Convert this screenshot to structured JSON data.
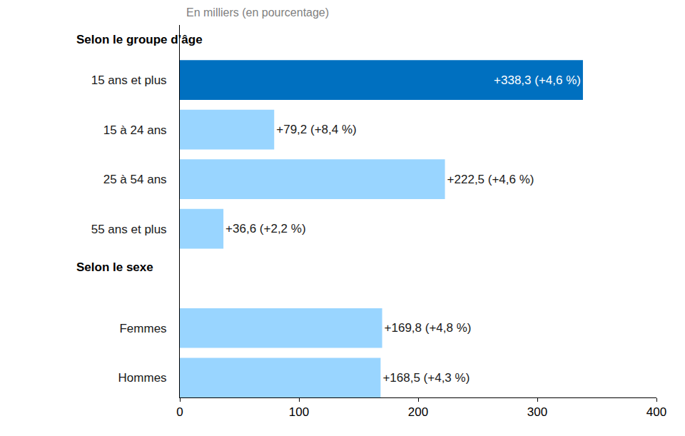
{
  "chart_data": {
    "type": "bar",
    "orientation": "horizontal",
    "subtitle": "En milliers (en pourcentage)",
    "categories": [
      "15 ans et plus",
      "15 à 24 ans",
      "25 à 54 ans",
      "55 ans et plus",
      "Femmes",
      "Hommes"
    ],
    "values": [
      338.3,
      79.2,
      222.5,
      36.6,
      169.8,
      168.5
    ],
    "value_labels": [
      "+338,3 (+4,6 %)",
      "+79,2 (+8,4 %)",
      "+222,5 (+4,6 %)",
      "+36,6 (+2,2 %)",
      "+169,8 (+4,8 %)",
      "+168,5 (+4,3 %)"
    ],
    "colors": [
      "#0070c0",
      "#99d5ff",
      "#99d5ff",
      "#99d5ff",
      "#99d5ff",
      "#99d5ff"
    ],
    "annotations": [
      {
        "text": "Selon le groupe d’âge",
        "category": "15 ans et plus"
      },
      {
        "text": "Selon le sexe",
        "category": "Femmes"
      }
    ],
    "xlim": [
      0,
      400
    ],
    "xticks": [
      0,
      100,
      200,
      300,
      400
    ],
    "grid": false,
    "data_labels": true
  }
}
